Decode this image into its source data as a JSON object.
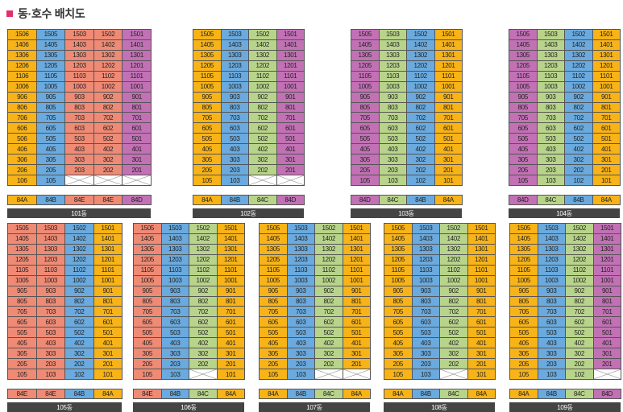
{
  "header": {
    "title": "동·호수 배치도"
  },
  "type_colors": {
    "84A": "#f7b317",
    "84B": "#6aaade",
    "84C": "#b8d48a",
    "84D": "#c271b5",
    "84E": "#ef8a75"
  },
  "buildings": [
    {
      "name": "101동",
      "floors": [
        15,
        14,
        13,
        12,
        11,
        10,
        9,
        8,
        7,
        6,
        5,
        4,
        3,
        2,
        1
      ],
      "columns": [
        {
          "type": "84A",
          "unit": "06",
          "vacant_floors": []
        },
        {
          "type": "84B",
          "unit": "05",
          "vacant_floors": []
        },
        {
          "type": "84E",
          "unit": "03",
          "vacant_floors": [
            1
          ]
        },
        {
          "type": "84E",
          "unit": "02",
          "vacant_floors": [
            1
          ]
        },
        {
          "type": "84D",
          "unit": "01",
          "vacant_floors": [
            1
          ]
        }
      ]
    },
    {
      "name": "102동",
      "floors": [
        15,
        14,
        13,
        12,
        11,
        10,
        9,
        8,
        7,
        6,
        5,
        4,
        3,
        2,
        1
      ],
      "columns": [
        {
          "type": "84A",
          "unit": "05",
          "vacant_floors": []
        },
        {
          "type": "84B",
          "unit": "03",
          "vacant_floors": []
        },
        {
          "type": "84C",
          "unit": "02",
          "vacant_floors": [
            1
          ]
        },
        {
          "type": "84D",
          "unit": "01",
          "vacant_floors": [
            1
          ]
        }
      ]
    },
    {
      "name": "103동",
      "floors": [
        15,
        14,
        13,
        12,
        11,
        10,
        9,
        8,
        7,
        6,
        5,
        4,
        3,
        2,
        1
      ],
      "columns": [
        {
          "type": "84D",
          "unit": "05",
          "vacant_floors": []
        },
        {
          "type": "84C",
          "unit": "03",
          "vacant_floors": []
        },
        {
          "type": "84B",
          "unit": "02",
          "vacant_floors": []
        },
        {
          "type": "84A",
          "unit": "01",
          "vacant_floors": []
        }
      ]
    },
    {
      "name": "104동",
      "floors": [
        15,
        14,
        13,
        12,
        11,
        10,
        9,
        8,
        7,
        6,
        5,
        4,
        3,
        2,
        1
      ],
      "columns": [
        {
          "type": "84D",
          "unit": "05",
          "vacant_floors": []
        },
        {
          "type": "84C",
          "unit": "03",
          "vacant_floors": []
        },
        {
          "type": "84B",
          "unit": "02",
          "vacant_floors": []
        },
        {
          "type": "84A",
          "unit": "01",
          "vacant_floors": []
        }
      ]
    },
    {
      "name": "105동",
      "floors": [
        15,
        14,
        13,
        12,
        11,
        10,
        9,
        8,
        7,
        6,
        5,
        4,
        3,
        2,
        1
      ],
      "columns": [
        {
          "type": "84E",
          "unit": "05",
          "vacant_floors": []
        },
        {
          "type": "84E",
          "unit": "03",
          "vacant_floors": []
        },
        {
          "type": "84B",
          "unit": "02",
          "vacant_floors": []
        },
        {
          "type": "84A",
          "unit": "01",
          "vacant_floors": []
        }
      ]
    },
    {
      "name": "106동",
      "floors": [
        15,
        14,
        13,
        12,
        11,
        10,
        9,
        8,
        7,
        6,
        5,
        4,
        3,
        2,
        1
      ],
      "columns": [
        {
          "type": "84E",
          "unit": "05",
          "vacant_floors": []
        },
        {
          "type": "84B",
          "unit": "03",
          "vacant_floors": []
        },
        {
          "type": "84C",
          "unit": "02",
          "vacant_floors": [
            1
          ]
        },
        {
          "type": "84A",
          "unit": "01",
          "vacant_floors": []
        }
      ]
    },
    {
      "name": "107동",
      "floors": [
        15,
        14,
        13,
        12,
        11,
        10,
        9,
        8,
        7,
        6,
        5,
        4,
        3,
        2,
        1
      ],
      "columns": [
        {
          "type": "84A",
          "unit": "05",
          "vacant_floors": []
        },
        {
          "type": "84B",
          "unit": "03",
          "vacant_floors": []
        },
        {
          "type": "84C",
          "unit": "02",
          "vacant_floors": [
            1
          ]
        },
        {
          "type": "84A",
          "unit": "01",
          "vacant_floors": [
            1
          ]
        }
      ]
    },
    {
      "name": "108동",
      "floors": [
        15,
        14,
        13,
        12,
        11,
        10,
        9,
        8,
        7,
        6,
        5,
        4,
        3,
        2,
        1
      ],
      "columns": [
        {
          "type": "84A",
          "unit": "05",
          "vacant_floors": []
        },
        {
          "type": "84B",
          "unit": "03",
          "vacant_floors": []
        },
        {
          "type": "84C",
          "unit": "02",
          "vacant_floors": [
            1
          ]
        },
        {
          "type": "84A",
          "unit": "01",
          "vacant_floors": []
        }
      ]
    },
    {
      "name": "109동",
      "floors": [
        15,
        14,
        13,
        12,
        11,
        10,
        9,
        8,
        7,
        6,
        5,
        4,
        3,
        2,
        1
      ],
      "columns": [
        {
          "type": "84A",
          "unit": "05",
          "vacant_floors": []
        },
        {
          "type": "84B",
          "unit": "03",
          "vacant_floors": []
        },
        {
          "type": "84C",
          "unit": "02",
          "vacant_floors": []
        },
        {
          "type": "84D",
          "unit": "01",
          "vacant_floors": [
            1
          ]
        }
      ]
    }
  ]
}
